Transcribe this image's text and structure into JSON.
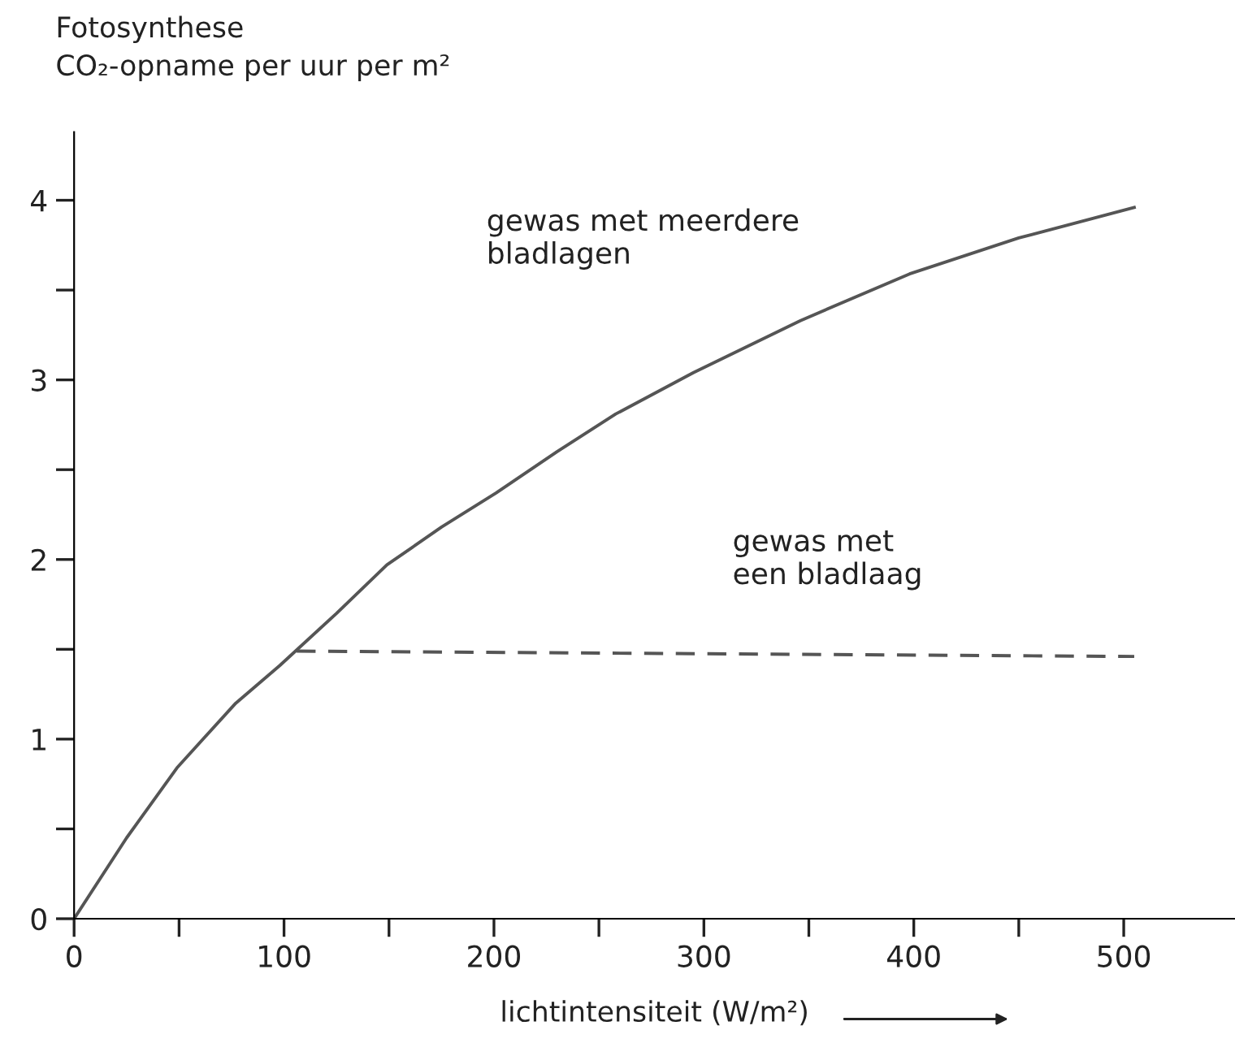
{
  "chart_data": {
    "type": "line",
    "ylabel": "Fotosynthese\nCO₂-opname per uur per m²",
    "xlabel": "lichtintensiteit (W/m²)",
    "series": [
      {
        "name": "gewas met meerdere\nbladlagen",
        "color": "#555555",
        "line_style": "solid",
        "x": [
          0,
          25,
          49,
          77,
          98,
          125,
          149,
          175,
          201,
          230,
          258,
          295,
          346,
          398,
          450,
          505
        ],
        "values": [
          0,
          0.45,
          0.84,
          1.2,
          1.41,
          1.7,
          1.97,
          2.18,
          2.37,
          2.6,
          2.81,
          3.04,
          3.33,
          3.59,
          3.79,
          3.96
        ]
      },
      {
        "name": "gewas met\neen bladlaag",
        "color": "#555555",
        "line_style": "dashed",
        "x": [
          106,
          505
        ],
        "values": [
          1.49,
          1.46
        ]
      }
    ],
    "xlim": [
      0,
      553
    ],
    "ylim": [
      0,
      4.38
    ],
    "xticks": [
      0,
      {
        "value": 50,
        "label": null
      },
      100,
      {
        "value": 150,
        "label": null
      },
      200,
      {
        "value": 250,
        "label": null
      },
      300,
      {
        "value": 350,
        "label": null
      },
      400,
      {
        "value": 450,
        "label": null
      },
      500
    ],
    "yticks": [
      0,
      {
        "value": 0.5,
        "label": null
      },
      1,
      {
        "value": 1.5,
        "label": null
      },
      2,
      {
        "value": 2.5,
        "label": null
      },
      3,
      {
        "value": 3.5,
        "label": null
      },
      4
    ],
    "grid": false,
    "legend": false,
    "marker": "none"
  }
}
